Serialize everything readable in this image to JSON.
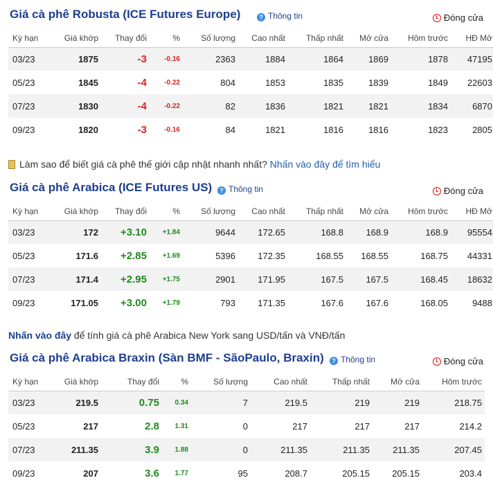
{
  "robusta": {
    "title": "Giá cà phê Robusta (ICE Futures Europe)",
    "info": "Thông tin",
    "status": "Đóng cửa",
    "headers": [
      "Kỳ hạn",
      "Giá khớp",
      "Thay đổi",
      "%",
      "Số lượng",
      "Cao nhất",
      "Thấp nhất",
      "Mở cửa",
      "Hôm trước",
      "HĐ Mở"
    ],
    "rows": [
      [
        "03/23",
        "1875",
        "-3",
        "-0.16",
        "2363",
        "1884",
        "1864",
        "1869",
        "1878",
        "47195"
      ],
      [
        "05/23",
        "1845",
        "-4",
        "-0.22",
        "804",
        "1853",
        "1835",
        "1839",
        "1849",
        "22603"
      ],
      [
        "07/23",
        "1830",
        "-4",
        "-0.22",
        "82",
        "1836",
        "1821",
        "1821",
        "1834",
        "6870"
      ],
      [
        "09/23",
        "1820",
        "-3",
        "-0.16",
        "84",
        "1821",
        "1816",
        "1816",
        "1823",
        "2805"
      ]
    ]
  },
  "note1": {
    "text": "Làm sao để biết giá cà phê thế giới cập nhật nhanh nhất?",
    "link": "Nhấn vào đây để tìm hiểu"
  },
  "arabica": {
    "title": "Giá cà phê Arabica (ICE Futures US)",
    "info": "Thông tin",
    "status": "Đóng cửa",
    "headers": [
      "Kỳ hạn",
      "Giá khớp",
      "Thay đổi",
      "%",
      "Số lượng",
      "Cao nhất",
      "Thấp nhất",
      "Mở cửa",
      "Hôm trước",
      "HĐ Mở"
    ],
    "rows": [
      [
        "03/23",
        "172",
        "+3.10",
        "+1.84",
        "9644",
        "172.65",
        "168.8",
        "168.9",
        "168.9",
        "95554"
      ],
      [
        "05/23",
        "171.6",
        "+2.85",
        "+1.69",
        "5396",
        "172.35",
        "168.55",
        "168.55",
        "168.75",
        "44331"
      ],
      [
        "07/23",
        "171.4",
        "+2.95",
        "+1.75",
        "2901",
        "171.95",
        "167.5",
        "167.5",
        "168.45",
        "18632"
      ],
      [
        "09/23",
        "171.05",
        "+3.00",
        "+1.79",
        "793",
        "171.35",
        "167.6",
        "167.6",
        "168.05",
        "9488"
      ]
    ]
  },
  "note2": {
    "link": "Nhấn vào đây",
    "text": "để tính giá cà phê Arabica New York sang USD/tấn và VNĐ/tấn"
  },
  "brazil": {
    "title": "Giá cà phê Arabica Braxin (Sàn BMF - SãoPaulo, Braxin)",
    "info": "Thông tin",
    "status": "Đóng cửa",
    "headers": [
      "Kỳ hạn",
      "Giá khớp",
      "Thay đổi",
      "%",
      "Số lượng",
      "Cao nhất",
      "Thấp nhất",
      "Mở cửa",
      "Hôm trước"
    ],
    "rows": [
      [
        "03/23",
        "219.5",
        "0.75",
        "0.34",
        "7",
        "219.5",
        "219",
        "219",
        "218.75"
      ],
      [
        "05/23",
        "217",
        "2.8",
        "1.31",
        "0",
        "217",
        "217",
        "217",
        "214.2"
      ],
      [
        "07/23",
        "211.35",
        "3.9",
        "1.88",
        "0",
        "211.35",
        "211.35",
        "211.35",
        "207.45"
      ],
      [
        "09/23",
        "207",
        "3.6",
        "1.77",
        "95",
        "208.7",
        "205.15",
        "205.15",
        "203.4"
      ]
    ]
  },
  "colors": {
    "title": "#1e3f8f",
    "negative": "#e02020",
    "positive": "#1f8a1f",
    "row_alt": "#f2f2f2"
  }
}
